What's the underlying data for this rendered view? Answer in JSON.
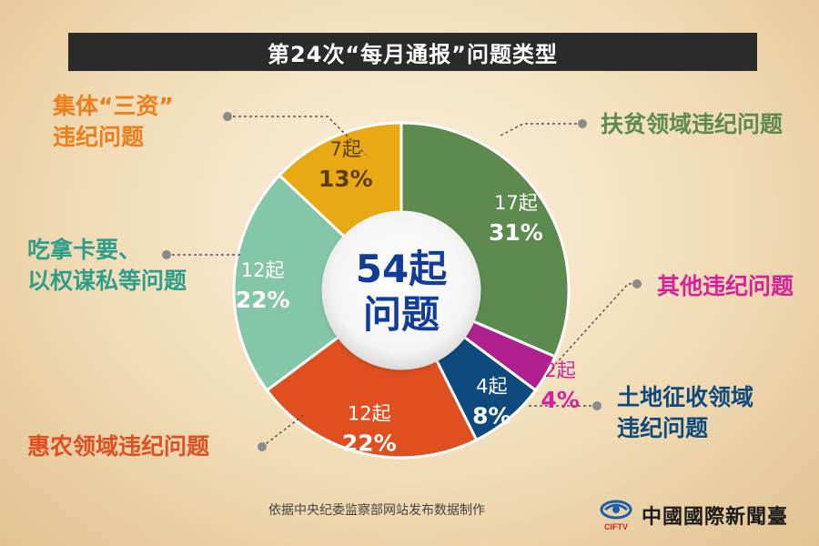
{
  "title": "第24次“每月通报”问题类型",
  "center": {
    "line1": "54起",
    "line2": "问题"
  },
  "chart_data": {
    "type": "pie",
    "donut": true,
    "total": 54,
    "slices": [
      {
        "name_lines": [
          "扶贫领域违纪问题"
        ],
        "count": 17,
        "count_label": "17起",
        "percent": 31,
        "percent_label": "31%",
        "color": "#5d8a4e",
        "label_color": "#5d8a4e"
      },
      {
        "name_lines": [
          "其他违纪问题"
        ],
        "count": 2,
        "count_label": "2起",
        "percent": 4,
        "percent_label": "4%",
        "color": "#b01f8e",
        "label_color": "#d6219a"
      },
      {
        "name_lines": [
          "土地征收领域",
          "违纪问题"
        ],
        "count": 4,
        "count_label": "4起",
        "percent": 8,
        "percent_label": "8%",
        "color": "#0f4a7e",
        "label_color": "#0f4a7e"
      },
      {
        "name_lines": [
          "惠农领域违纪问题"
        ],
        "count": 12,
        "count_label": "12起",
        "percent": 22,
        "percent_label": "22%",
        "color": "#e04f1f",
        "label_color": "#e04f1f"
      },
      {
        "name_lines": [
          "吃拿卡要、",
          "以权谋私等问题"
        ],
        "count": 12,
        "count_label": "12起",
        "percent": 22,
        "percent_label": "22%",
        "color": "#84c6a8",
        "label_color": "#2d9e8a"
      },
      {
        "name_lines": [
          "集体“三资”",
          "违纪问题"
        ],
        "count": 7,
        "count_label": "7起",
        "percent": 13,
        "percent_label": "13%",
        "color": "#e9a912",
        "label_color": "#ee7d1a"
      }
    ]
  },
  "footer": {
    "source": "依据中央纪委监察部网站发布数据制作",
    "logo_text": "中國國際新聞臺",
    "logo_abbr": "CIFTV",
    "logo_colors": {
      "blue": "#1b5fab",
      "red": "#d8231e"
    }
  }
}
